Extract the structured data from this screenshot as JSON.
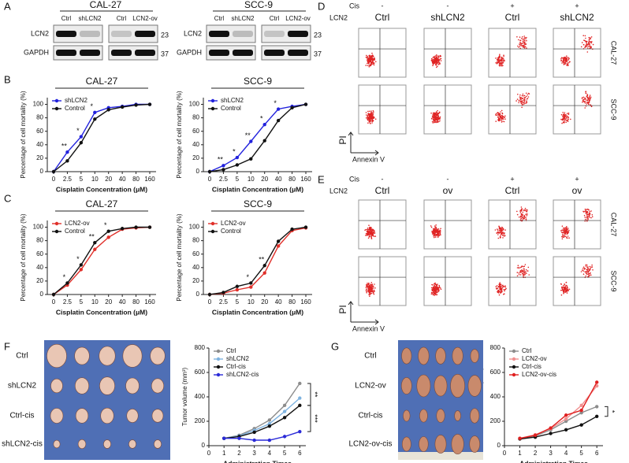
{
  "panel_labels": [
    "A",
    "B",
    "C",
    "D",
    "E",
    "F",
    "G"
  ],
  "western_blot": {
    "groups": [
      {
        "title": "CAL-27",
        "lanes": [
          "Ctrl",
          "shLCN2",
          "Ctrl",
          "LCN2-ov"
        ]
      },
      {
        "title": "SCC-9",
        "lanes": [
          "Ctrl",
          "shLCN2",
          "Ctrl",
          "LCN2-ov"
        ]
      }
    ],
    "rows": [
      "LCN2",
      "GAPDH"
    ],
    "markers": [
      "23",
      "37"
    ]
  },
  "flow_panels": [
    {
      "cis_label": "Cis",
      "lcn2_label": "LCN2",
      "cis": [
        "-",
        "-",
        "+",
        "+"
      ],
      "lcn2": [
        "Ctrl",
        "shLCN2",
        "Ctrl",
        "shLCN2"
      ],
      "rows": [
        "CAL-27",
        "SCC-9"
      ],
      "y_label": "PI",
      "x_label": "Annexin V"
    },
    {
      "cis_label": "Cis",
      "lcn2_label": "LCN2",
      "cis": [
        "-",
        "-",
        "+",
        "+"
      ],
      "lcn2": [
        "Ctrl",
        "ov",
        "Ctrl",
        "ov"
      ],
      "rows": [
        "CAL-27",
        "SCC-9"
      ],
      "y_label": "PI",
      "x_label": "Annexin V"
    }
  ],
  "tumor_photos": [
    {
      "rows": [
        "Ctrl",
        "shLCN2",
        "Ctrl-cis",
        "shLCN2-cis"
      ]
    },
    {
      "rows": [
        "Ctrl",
        "LCN2-ov",
        "Ctrl-cis",
        "LCN2-ov-cis"
      ]
    }
  ],
  "chart_data": [
    {
      "type": "line",
      "title": "CAL-27",
      "categories": [
        "0",
        "2.5",
        "5",
        "10",
        "20",
        "40",
        "80",
        "160"
      ],
      "series": [
        {
          "name": "shLCN2",
          "color": "#2222dd",
          "values": [
            0,
            29,
            52,
            88,
            95,
            97,
            100,
            100
          ]
        },
        {
          "name": "Control",
          "color": "#111111",
          "values": [
            0,
            16,
            43,
            78,
            92,
            96,
            99,
            100
          ]
        }
      ],
      "ylim": [
        0,
        110
      ],
      "yticks": [
        0,
        20,
        40,
        60,
        80,
        100
      ],
      "y_label": "Percentage of cell mortality (%)",
      "x_label": "Cisplatin Concentration (μM)",
      "legend": "upper left",
      "annotations": [
        {
          "category": "2.5",
          "text": "**"
        },
        {
          "category": "5",
          "text": "*"
        },
        {
          "category": "10",
          "text": "*"
        }
      ]
    },
    {
      "type": "line",
      "title": "SCC-9",
      "categories": [
        "0",
        "2.5",
        "5",
        "10",
        "20",
        "40",
        "80",
        "160"
      ],
      "series": [
        {
          "name": "shLCN2",
          "color": "#2222dd",
          "values": [
            0,
            9,
            21,
            45,
            70,
            93,
            97,
            100
          ]
        },
        {
          "name": "Control",
          "color": "#111111",
          "values": [
            0,
            3,
            10,
            19,
            46,
            76,
            95,
            100
          ]
        }
      ],
      "ylim": [
        0,
        110
      ],
      "yticks": [
        0,
        20,
        40,
        60,
        80,
        100
      ],
      "y_label": "Percentage of cell mortality (%)",
      "x_label": "Cisplatin Concentration (μM)",
      "legend": "upper left",
      "annotations": [
        {
          "category": "2.5",
          "text": "**"
        },
        {
          "category": "5",
          "text": "*"
        },
        {
          "category": "10",
          "text": "**"
        },
        {
          "category": "20",
          "text": "*"
        },
        {
          "category": "40",
          "text": "*"
        }
      ]
    },
    {
      "type": "line",
      "title": "CAL-27",
      "categories": [
        "0",
        "2.5",
        "5",
        "10",
        "20",
        "40",
        "80",
        "160"
      ],
      "series": [
        {
          "name": "LCN2-ov",
          "color": "#e0302a",
          "values": [
            0,
            14,
            37,
            67,
            85,
            97,
            99,
            100
          ]
        },
        {
          "name": "Control",
          "color": "#111111",
          "values": [
            0,
            17,
            44,
            77,
            94,
            98,
            100,
            100
          ]
        }
      ],
      "ylim": [
        0,
        110
      ],
      "yticks": [
        0,
        20,
        40,
        60,
        80,
        100
      ],
      "y_label": "Percentage of cell mortality (%)",
      "x_label": "Cisplatin Concentration (μM)",
      "legend": "upper left",
      "annotations": [
        {
          "category": "2.5",
          "text": "*"
        },
        {
          "category": "5",
          "text": "*"
        },
        {
          "category": "10",
          "text": "**"
        },
        {
          "category": "20",
          "text": "*"
        }
      ]
    },
    {
      "type": "line",
      "title": "SCC-9",
      "categories": [
        "0",
        "2.5",
        "5",
        "10",
        "20",
        "40",
        "80",
        "160"
      ],
      "series": [
        {
          "name": "LCN2-ov",
          "color": "#e0302a",
          "values": [
            0,
            2,
            7,
            11,
            32,
            72,
            95,
            99
          ]
        },
        {
          "name": "Control",
          "color": "#111111",
          "values": [
            0,
            3,
            12,
            17,
            43,
            79,
            97,
            100
          ]
        }
      ],
      "ylim": [
        0,
        110
      ],
      "yticks": [
        0,
        20,
        40,
        60,
        80,
        100
      ],
      "y_label": "Percentage of cell mortality (%)",
      "x_label": "Cisplatin Concentration (μM)",
      "legend": "upper left",
      "annotations": [
        {
          "category": "10",
          "text": "*"
        },
        {
          "category": "20",
          "text": "**"
        }
      ]
    },
    {
      "type": "line",
      "x": [
        1,
        2,
        3,
        4,
        5,
        6
      ],
      "xlim": [
        0,
        6.4
      ],
      "xticks": [
        0,
        1,
        2,
        3,
        4,
        5,
        6
      ],
      "series": [
        {
          "name": "Ctrl",
          "color": "#8c8c8c",
          "values": [
            60,
            85,
            140,
            210,
            330,
            510
          ]
        },
        {
          "name": "shLCN2",
          "color": "#7fb3e0",
          "values": [
            60,
            80,
            125,
            180,
            280,
            390
          ]
        },
        {
          "name": "Ctrl-cis",
          "color": "#111111",
          "values": [
            60,
            75,
            110,
            160,
            230,
            330
          ]
        },
        {
          "name": "shLCN2-cis",
          "color": "#2b2bd8",
          "values": [
            60,
            60,
            45,
            45,
            75,
            115
          ]
        }
      ],
      "ylim": [
        0,
        800
      ],
      "yticks": [
        0,
        200,
        400,
        600,
        800
      ],
      "y_label": "Tumor volume (mm³)",
      "x_label": "Administration Times",
      "legend": "upper left",
      "annotations": [
        {
          "between": [
            "Ctrl",
            "Ctrl-cis"
          ],
          "text": "**"
        },
        {
          "between": [
            "Ctrl-cis",
            "shLCN2-cis"
          ],
          "text": "***"
        }
      ]
    },
    {
      "type": "line",
      "x": [
        1,
        2,
        3,
        4,
        5,
        6
      ],
      "xlim": [
        0,
        6.4
      ],
      "xticks": [
        0,
        1,
        2,
        3,
        4,
        5,
        6
      ],
      "series": [
        {
          "name": "Ctrl",
          "color": "#8c8c8c",
          "values": [
            60,
            80,
            130,
            200,
            270,
            320
          ]
        },
        {
          "name": "LCN2-ov",
          "color": "#f09090",
          "values": [
            60,
            90,
            140,
            220,
            330,
            490
          ]
        },
        {
          "name": "Ctrl-cis",
          "color": "#111111",
          "values": [
            55,
            70,
            100,
            130,
            170,
            240
          ]
        },
        {
          "name": "LCN2-ov-cis",
          "color": "#e02020",
          "values": [
            60,
            85,
            145,
            250,
            290,
            520
          ]
        }
      ],
      "ylim": [
        0,
        800
      ],
      "yticks": [
        0,
        200,
        400,
        600,
        800
      ],
      "y_label": "Tumor volume (mm³)",
      "x_label": "Administration Times",
      "legend": "upper left",
      "annotations": [
        {
          "between": [
            "Ctrl",
            "Ctrl-cis"
          ],
          "text": "*"
        }
      ]
    }
  ]
}
